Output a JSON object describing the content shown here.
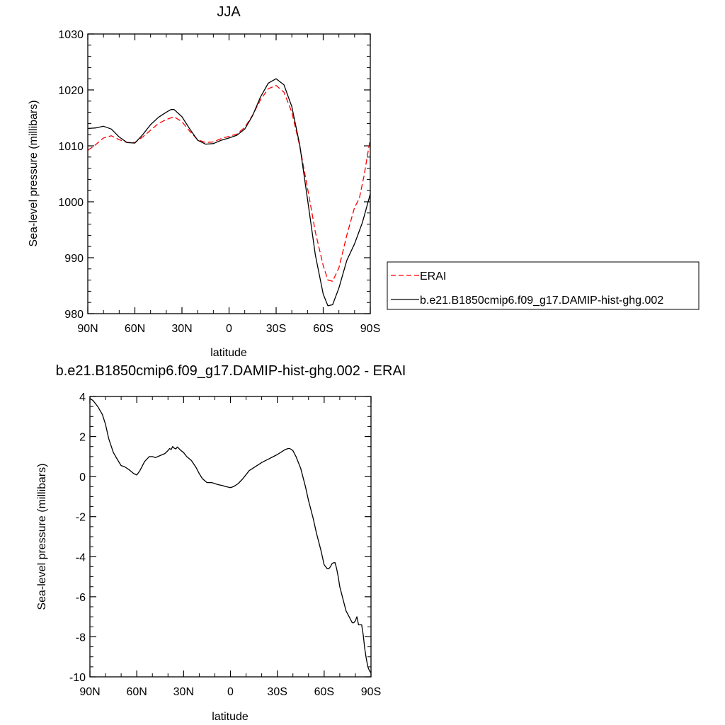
{
  "chart_data": [
    {
      "type": "line",
      "title": "JJA",
      "xlabel": "latitude",
      "ylabel": "Sea-level pressure (millibars)",
      "xlim": [
        90,
        -90
      ],
      "ylim": [
        980,
        1030
      ],
      "xticks": [
        90,
        60,
        30,
        0,
        -30,
        -60,
        -90
      ],
      "xtick_labels": [
        "90N",
        "60N",
        "30N",
        "0",
        "30S",
        "60S",
        "90S"
      ],
      "yticks": [
        980,
        990,
        1000,
        1010,
        1020,
        1030
      ],
      "ytick_labels": [
        "980",
        "990",
        "1000",
        "1010",
        "1020",
        "1030"
      ],
      "legend_position": "outside-right",
      "series": [
        {
          "name": "ERAI",
          "color": "#ff0000",
          "dash": "dashed",
          "x": [
            90,
            85,
            80,
            75,
            70,
            65,
            60,
            55,
            50,
            45,
            40,
            35,
            30,
            25,
            20,
            15,
            10,
            5,
            0,
            -5,
            -10,
            -15,
            -20,
            -25,
            -30,
            -35,
            -40,
            -45,
            -50,
            -55,
            -60,
            -63,
            -66,
            -70,
            -75,
            -80,
            -83,
            -86,
            -90
          ],
          "y": [
            1009.2,
            1010.2,
            1011.4,
            1011.8,
            1011.1,
            1010.6,
            1010.6,
            1011.6,
            1012.8,
            1014.0,
            1014.7,
            1015.2,
            1014.3,
            1012.6,
            1011.1,
            1010.6,
            1010.7,
            1011.3,
            1011.7,
            1012.1,
            1013.3,
            1015.5,
            1018.2,
            1020.2,
            1020.8,
            1019.6,
            1016.0,
            1010.0,
            1002.5,
            994.6,
            988.6,
            986.0,
            985.8,
            988.2,
            994.0,
            999.0,
            1000.6,
            1004.6,
            1011.3
          ]
        },
        {
          "name": "b.e21.B1850cmip6.f09_g17.DAMIP-hist-ghg.002",
          "color": "#000000",
          "dash": "solid",
          "x": [
            90,
            85,
            80,
            75,
            70,
            65,
            60,
            55,
            50,
            45,
            40,
            37,
            35,
            30,
            25,
            20,
            15,
            10,
            5,
            0,
            -5,
            -10,
            -15,
            -20,
            -25,
            -30,
            -35,
            -40,
            -45,
            -50,
            -55,
            -60,
            -63,
            -66,
            -70,
            -75,
            -80,
            -85,
            -90
          ],
          "y": [
            1013.1,
            1013.2,
            1013.5,
            1013.0,
            1011.6,
            1010.6,
            1010.5,
            1012.0,
            1013.8,
            1015.1,
            1016.0,
            1016.5,
            1016.5,
            1015.2,
            1013.0,
            1011.0,
            1010.3,
            1010.4,
            1011.0,
            1011.4,
            1011.9,
            1013.0,
            1015.4,
            1018.7,
            1021.2,
            1022.0,
            1020.9,
            1017.0,
            1010.2,
            1000.5,
            990.5,
            983.5,
            981.4,
            981.6,
            984.6,
            989.5,
            992.5,
            996.3,
            1001.4
          ]
        }
      ]
    },
    {
      "type": "line",
      "title": "b.e21.B1850cmip6.f09_g17.DAMIP-hist-ghg.002 - ERAI",
      "xlabel": "latitude",
      "ylabel": "Sea-level pressure (millibars)",
      "xlim": [
        90,
        -90
      ],
      "ylim": [
        -10,
        4
      ],
      "xticks": [
        90,
        60,
        30,
        0,
        -30,
        -60,
        -90
      ],
      "xtick_labels": [
        "90N",
        "60N",
        "30N",
        "0",
        "30S",
        "60S",
        "90S"
      ],
      "yticks": [
        -10,
        -8,
        -6,
        -4,
        -2,
        0,
        2,
        4
      ],
      "ytick_labels": [
        "-10",
        "-8",
        "-6",
        "-4",
        "-2",
        "0",
        "2",
        "4"
      ],
      "series": [
        {
          "color": "#000000",
          "dash": "solid",
          "x": [
            90,
            88,
            85,
            82,
            80,
            78,
            75,
            72,
            70,
            68,
            65,
            62,
            60,
            58,
            55,
            52,
            50,
            48,
            45,
            42,
            40,
            39,
            38,
            37,
            36,
            35,
            34,
            33,
            32,
            30,
            28,
            25,
            22,
            20,
            18,
            15,
            12,
            10,
            8,
            5,
            3,
            0,
            -2,
            -5,
            -8,
            -10,
            -12,
            -15,
            -18,
            -20,
            -25,
            -30,
            -33,
            -35,
            -37,
            -38,
            -40,
            -42,
            -45,
            -48,
            -50,
            -53,
            -55,
            -58,
            -60,
            -62,
            -63,
            -64,
            -65,
            -66,
            -67,
            -68,
            -69,
            -70,
            -72,
            -74,
            -76,
            -78,
            -79,
            -80,
            -81,
            -82,
            -83,
            -84,
            -85,
            -86,
            -87,
            -88,
            -89,
            -90
          ],
          "y": [
            3.9,
            3.8,
            3.5,
            3.1,
            2.6,
            1.9,
            1.2,
            0.8,
            0.55,
            0.5,
            0.35,
            0.15,
            0.08,
            0.3,
            0.75,
            1.0,
            1.0,
            0.95,
            1.05,
            1.15,
            1.3,
            1.4,
            1.35,
            1.5,
            1.42,
            1.38,
            1.48,
            1.4,
            1.32,
            1.2,
            1.0,
            0.8,
            0.45,
            0.15,
            -0.1,
            -0.3,
            -0.3,
            -0.35,
            -0.4,
            -0.45,
            -0.5,
            -0.55,
            -0.5,
            -0.35,
            -0.1,
            0.1,
            0.3,
            0.45,
            0.6,
            0.7,
            0.9,
            1.1,
            1.25,
            1.35,
            1.4,
            1.4,
            1.3,
            1.0,
            0.4,
            -0.5,
            -1.2,
            -2.1,
            -2.8,
            -3.7,
            -4.4,
            -4.6,
            -4.6,
            -4.5,
            -4.35,
            -4.3,
            -4.3,
            -4.6,
            -5.0,
            -5.5,
            -6.1,
            -6.7,
            -7.0,
            -7.3,
            -7.3,
            -7.2,
            -7.0,
            -7.4,
            -7.4,
            -7.4,
            -7.9,
            -8.6,
            -9.1,
            -9.5,
            -9.7,
            -9.8
          ]
        }
      ]
    }
  ]
}
